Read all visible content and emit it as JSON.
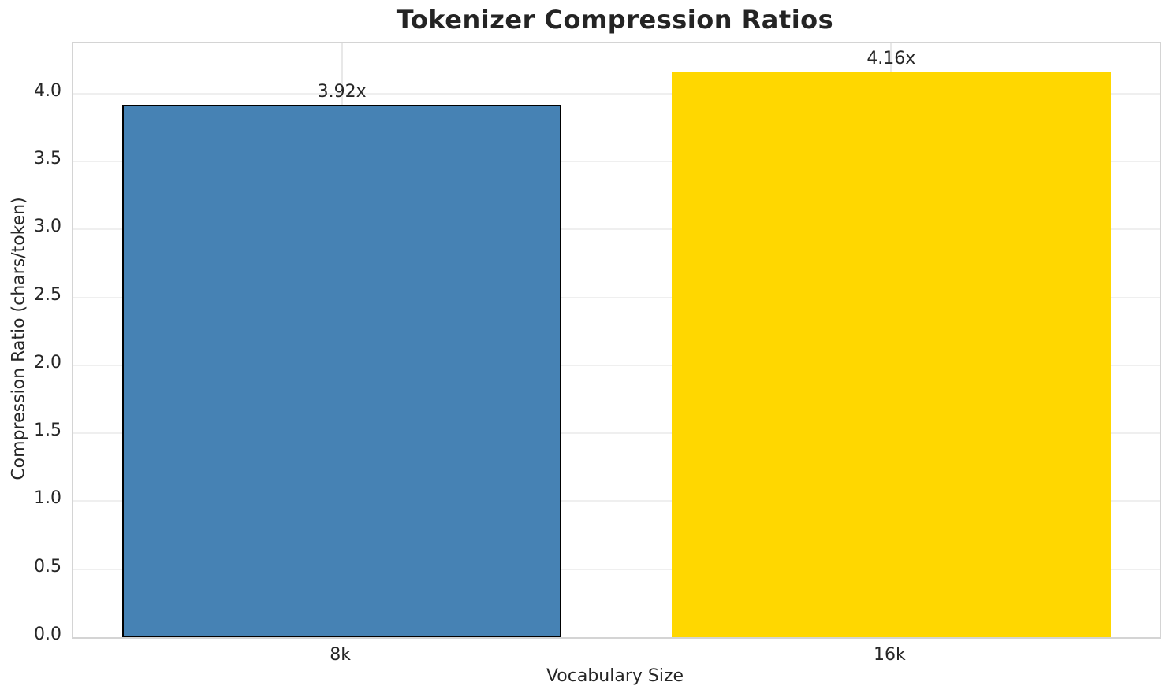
{
  "chart_data": {
    "type": "bar",
    "title": "Tokenizer Compression Ratios",
    "xlabel": "Vocabulary Size",
    "ylabel": "Compression Ratio (chars/token)",
    "categories": [
      "8k",
      "16k"
    ],
    "values": [
      3.92,
      4.16
    ],
    "bar_labels": [
      "3.92x",
      "4.16x"
    ],
    "bar_colors": [
      "#4682B4",
      "#FFD700"
    ],
    "bar_edge_colors": [
      "#000000",
      "none"
    ],
    "ylim": [
      0,
      4.371
    ],
    "xlim": [
      -0.489,
      1.489
    ],
    "bar_width_units": 0.8,
    "yticks": [
      0.0,
      0.5,
      1.0,
      1.5,
      2.0,
      2.5,
      3.0,
      3.5,
      4.0
    ],
    "ytick_labels": [
      "0.0",
      "0.5",
      "1.0",
      "1.5",
      "2.0",
      "2.5",
      "3.0",
      "3.5",
      "4.0"
    ],
    "grid": true,
    "legend_position": "none"
  },
  "style": {
    "title_color": "#242424",
    "text_color": "#262626",
    "grid_color": "#efefef",
    "spine_color": "#d4d4d4",
    "background": "#ffffff"
  }
}
